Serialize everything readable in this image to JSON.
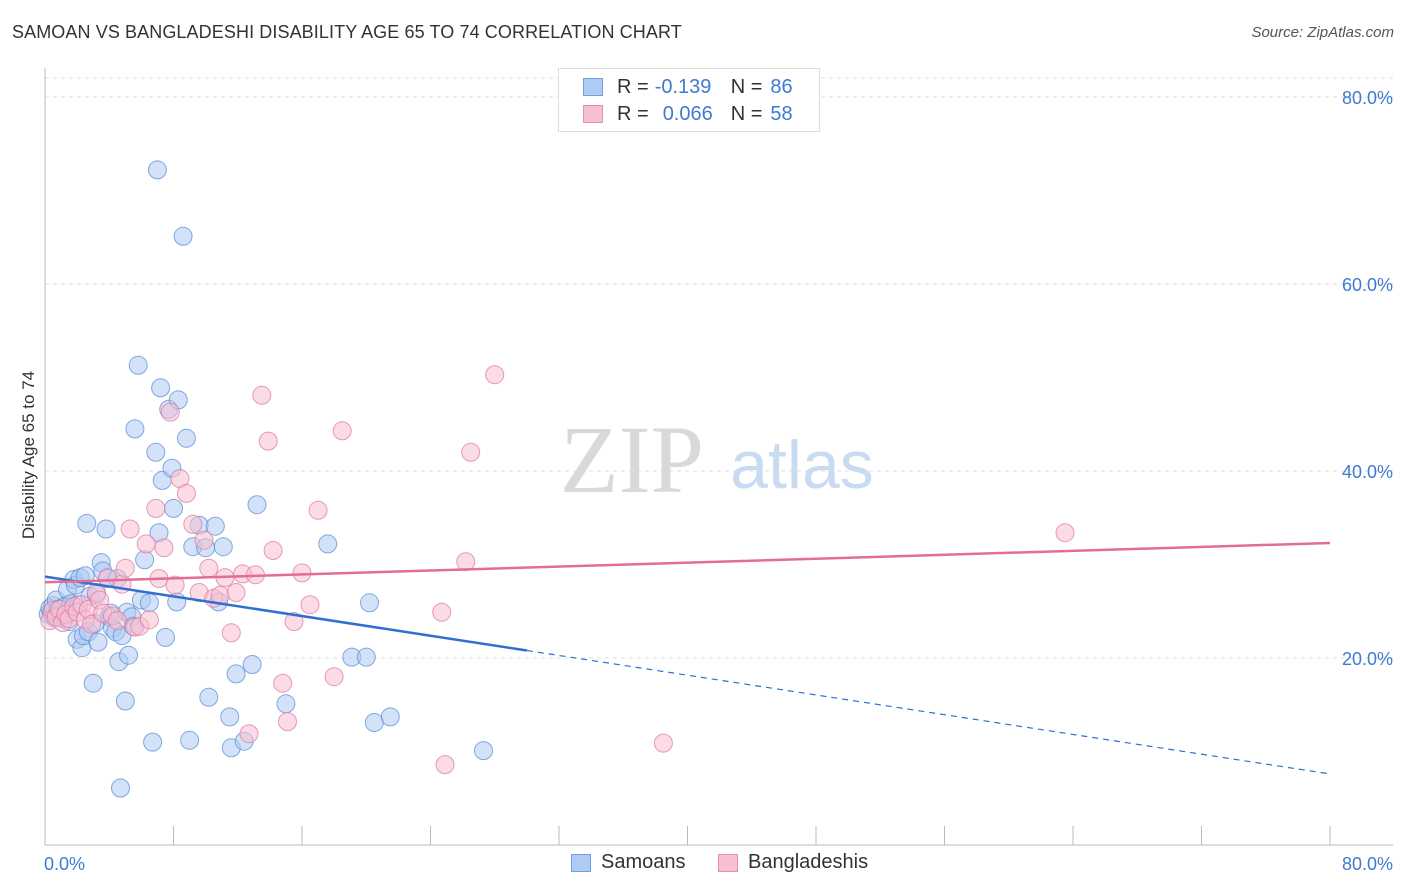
{
  "title": "SAMOAN VS BANGLADESHI DISABILITY AGE 65 TO 74 CORRELATION CHART",
  "source": "Source: ZipAtlas.com",
  "legend": {
    "r_label": "R =",
    "n_label": "N =",
    "items": [
      {
        "name": "Samoans",
        "r": "-0.139",
        "n": "86",
        "fill": "#aecbf3",
        "stroke": "#6f9fdf"
      },
      {
        "name": "Bangladeshis",
        "r": "0.066",
        "n": "58",
        "fill": "#f7bfd2",
        "stroke": "#e58fae"
      }
    ]
  },
  "watermark": {
    "zip": "ZIP",
    "atlas": "atlas"
  },
  "chart_data": {
    "type": "scatter",
    "title": "SAMOAN VS BANGLADESHI DISABILITY AGE 65 TO 74 CORRELATION CHART",
    "xlabel": "",
    "ylabel": "Disability Age 65 to 74",
    "xlim": [
      0,
      80
    ],
    "ylim": [
      0,
      80
    ],
    "x_tick_labels": [
      "0.0%",
      "80.0%"
    ],
    "y_ticks": [
      20,
      40,
      60,
      80
    ],
    "y_tick_labels": [
      "20.0%",
      "40.0%",
      "60.0%",
      "80.0%"
    ],
    "grid": true,
    "legend_position": "top-center",
    "series": [
      {
        "name": "Samoans",
        "color": "#5b8fd6",
        "fill": "#aecbf3",
        "trend": {
          "x0": 0,
          "y0": 28.7,
          "x1": 30,
          "y1": 20.8,
          "dash_to_x": 80,
          "dash_to_y": 7.6,
          "color": "#2f6fd0"
        },
        "points": [
          [
            0.2,
            24.7
          ],
          [
            0.3,
            25.3
          ],
          [
            0.4,
            24.8
          ],
          [
            0.5,
            25.6
          ],
          [
            0.6,
            24.3
          ],
          [
            0.7,
            26.2
          ],
          [
            0.8,
            25.2
          ],
          [
            0.9,
            24.6
          ],
          [
            1.0,
            24.5
          ],
          [
            1.1,
            25.4
          ],
          [
            1.2,
            24.2
          ],
          [
            1.3,
            25.6
          ],
          [
            1.4,
            27.3
          ],
          [
            1.5,
            23.9
          ],
          [
            1.6,
            25.8
          ],
          [
            1.8,
            28.4
          ],
          [
            1.9,
            27.8
          ],
          [
            2.0,
            22.0
          ],
          [
            2.1,
            25.7
          ],
          [
            2.2,
            28.6
          ],
          [
            2.3,
            21.1
          ],
          [
            2.4,
            22.4
          ],
          [
            2.5,
            28.8
          ],
          [
            2.6,
            34.4
          ],
          [
            2.7,
            22.8
          ],
          [
            2.8,
            26.6
          ],
          [
            3.0,
            17.3
          ],
          [
            3.1,
            23.7
          ],
          [
            3.2,
            26.8
          ],
          [
            3.3,
            21.7
          ],
          [
            3.5,
            30.2
          ],
          [
            3.6,
            29.3
          ],
          [
            3.8,
            33.8
          ],
          [
            3.9,
            28.5
          ],
          [
            4.0,
            24.4
          ],
          [
            4.1,
            24.8
          ],
          [
            4.2,
            23.2
          ],
          [
            4.4,
            22.8
          ],
          [
            4.5,
            28.5
          ],
          [
            4.6,
            19.6
          ],
          [
            4.7,
            6.1
          ],
          [
            4.8,
            22.4
          ],
          [
            5.0,
            15.4
          ],
          [
            5.1,
            24.9
          ],
          [
            5.2,
            20.3
          ],
          [
            5.4,
            24.4
          ],
          [
            5.5,
            23.4
          ],
          [
            5.6,
            44.5
          ],
          [
            5.8,
            51.3
          ],
          [
            6.0,
            26.2
          ],
          [
            6.2,
            30.5
          ],
          [
            6.5,
            25.9
          ],
          [
            6.7,
            11.0
          ],
          [
            6.9,
            42.0
          ],
          [
            7.0,
            72.2
          ],
          [
            7.1,
            33.4
          ],
          [
            7.2,
            48.9
          ],
          [
            7.3,
            39.0
          ],
          [
            7.5,
            22.2
          ],
          [
            7.7,
            46.6
          ],
          [
            7.9,
            40.3
          ],
          [
            8.0,
            36.0
          ],
          [
            8.2,
            26.0
          ],
          [
            8.3,
            47.6
          ],
          [
            8.6,
            65.1
          ],
          [
            8.8,
            43.5
          ],
          [
            9.0,
            11.2
          ],
          [
            9.2,
            31.9
          ],
          [
            9.6,
            34.2
          ],
          [
            10.0,
            31.8
          ],
          [
            10.2,
            15.8
          ],
          [
            10.6,
            34.1
          ],
          [
            10.8,
            26.0
          ],
          [
            11.1,
            31.9
          ],
          [
            11.5,
            13.7
          ],
          [
            11.6,
            10.4
          ],
          [
            11.9,
            18.3
          ],
          [
            12.4,
            11.1
          ],
          [
            12.9,
            19.3
          ],
          [
            13.2,
            36.4
          ],
          [
            15.0,
            15.1
          ],
          [
            17.6,
            32.2
          ],
          [
            19.1,
            20.1
          ],
          [
            20.0,
            20.1
          ],
          [
            20.2,
            25.9
          ],
          [
            20.5,
            13.1
          ],
          [
            21.5,
            13.7
          ],
          [
            27.3,
            10.1
          ]
        ]
      },
      {
        "name": "Bangladeshis",
        "color": "#e07aa0",
        "fill": "#f7bfd2",
        "trend": {
          "x0": 0,
          "y0": 28.1,
          "x1": 80,
          "y1": 32.3,
          "color": "#e26d97"
        },
        "points": [
          [
            0.3,
            24.0
          ],
          [
            0.5,
            25.1
          ],
          [
            0.7,
            24.4
          ],
          [
            0.9,
            25.2
          ],
          [
            1.1,
            23.8
          ],
          [
            1.3,
            24.7
          ],
          [
            1.5,
            24.2
          ],
          [
            1.8,
            25.5
          ],
          [
            2.0,
            24.9
          ],
          [
            2.3,
            25.7
          ],
          [
            2.5,
            24.1
          ],
          [
            2.7,
            25.2
          ],
          [
            2.9,
            23.6
          ],
          [
            3.2,
            27.0
          ],
          [
            3.4,
            26.2
          ],
          [
            3.6,
            24.8
          ],
          [
            3.9,
            28.6
          ],
          [
            4.2,
            24.5
          ],
          [
            4.5,
            24.0
          ],
          [
            4.8,
            27.9
          ],
          [
            5.0,
            29.6
          ],
          [
            5.3,
            33.8
          ],
          [
            5.6,
            23.3
          ],
          [
            5.9,
            23.4
          ],
          [
            6.3,
            32.2
          ],
          [
            6.5,
            24.1
          ],
          [
            6.9,
            36.0
          ],
          [
            7.1,
            28.5
          ],
          [
            7.4,
            31.8
          ],
          [
            7.8,
            46.3
          ],
          [
            8.1,
            27.8
          ],
          [
            8.4,
            39.2
          ],
          [
            8.8,
            37.6
          ],
          [
            9.2,
            34.3
          ],
          [
            9.6,
            27.0
          ],
          [
            9.9,
            32.6
          ],
          [
            10.2,
            29.6
          ],
          [
            10.5,
            26.4
          ],
          [
            10.9,
            26.7
          ],
          [
            11.2,
            28.6
          ],
          [
            11.6,
            22.7
          ],
          [
            11.9,
            27.0
          ],
          [
            12.3,
            29.0
          ],
          [
            12.7,
            11.9
          ],
          [
            13.1,
            28.9
          ],
          [
            13.5,
            48.1
          ],
          [
            13.9,
            43.2
          ],
          [
            14.2,
            31.5
          ],
          [
            14.8,
            17.3
          ],
          [
            15.1,
            13.2
          ],
          [
            15.5,
            23.9
          ],
          [
            16.0,
            29.1
          ],
          [
            16.5,
            25.7
          ],
          [
            17.0,
            35.8
          ],
          [
            18.0,
            18.0
          ],
          [
            18.5,
            44.3
          ],
          [
            24.7,
            24.9
          ],
          [
            24.9,
            8.6
          ],
          [
            26.2,
            30.3
          ],
          [
            26.5,
            42.0
          ],
          [
            28.0,
            50.3
          ],
          [
            38.5,
            10.9
          ],
          [
            63.5,
            33.4
          ]
        ]
      }
    ]
  }
}
